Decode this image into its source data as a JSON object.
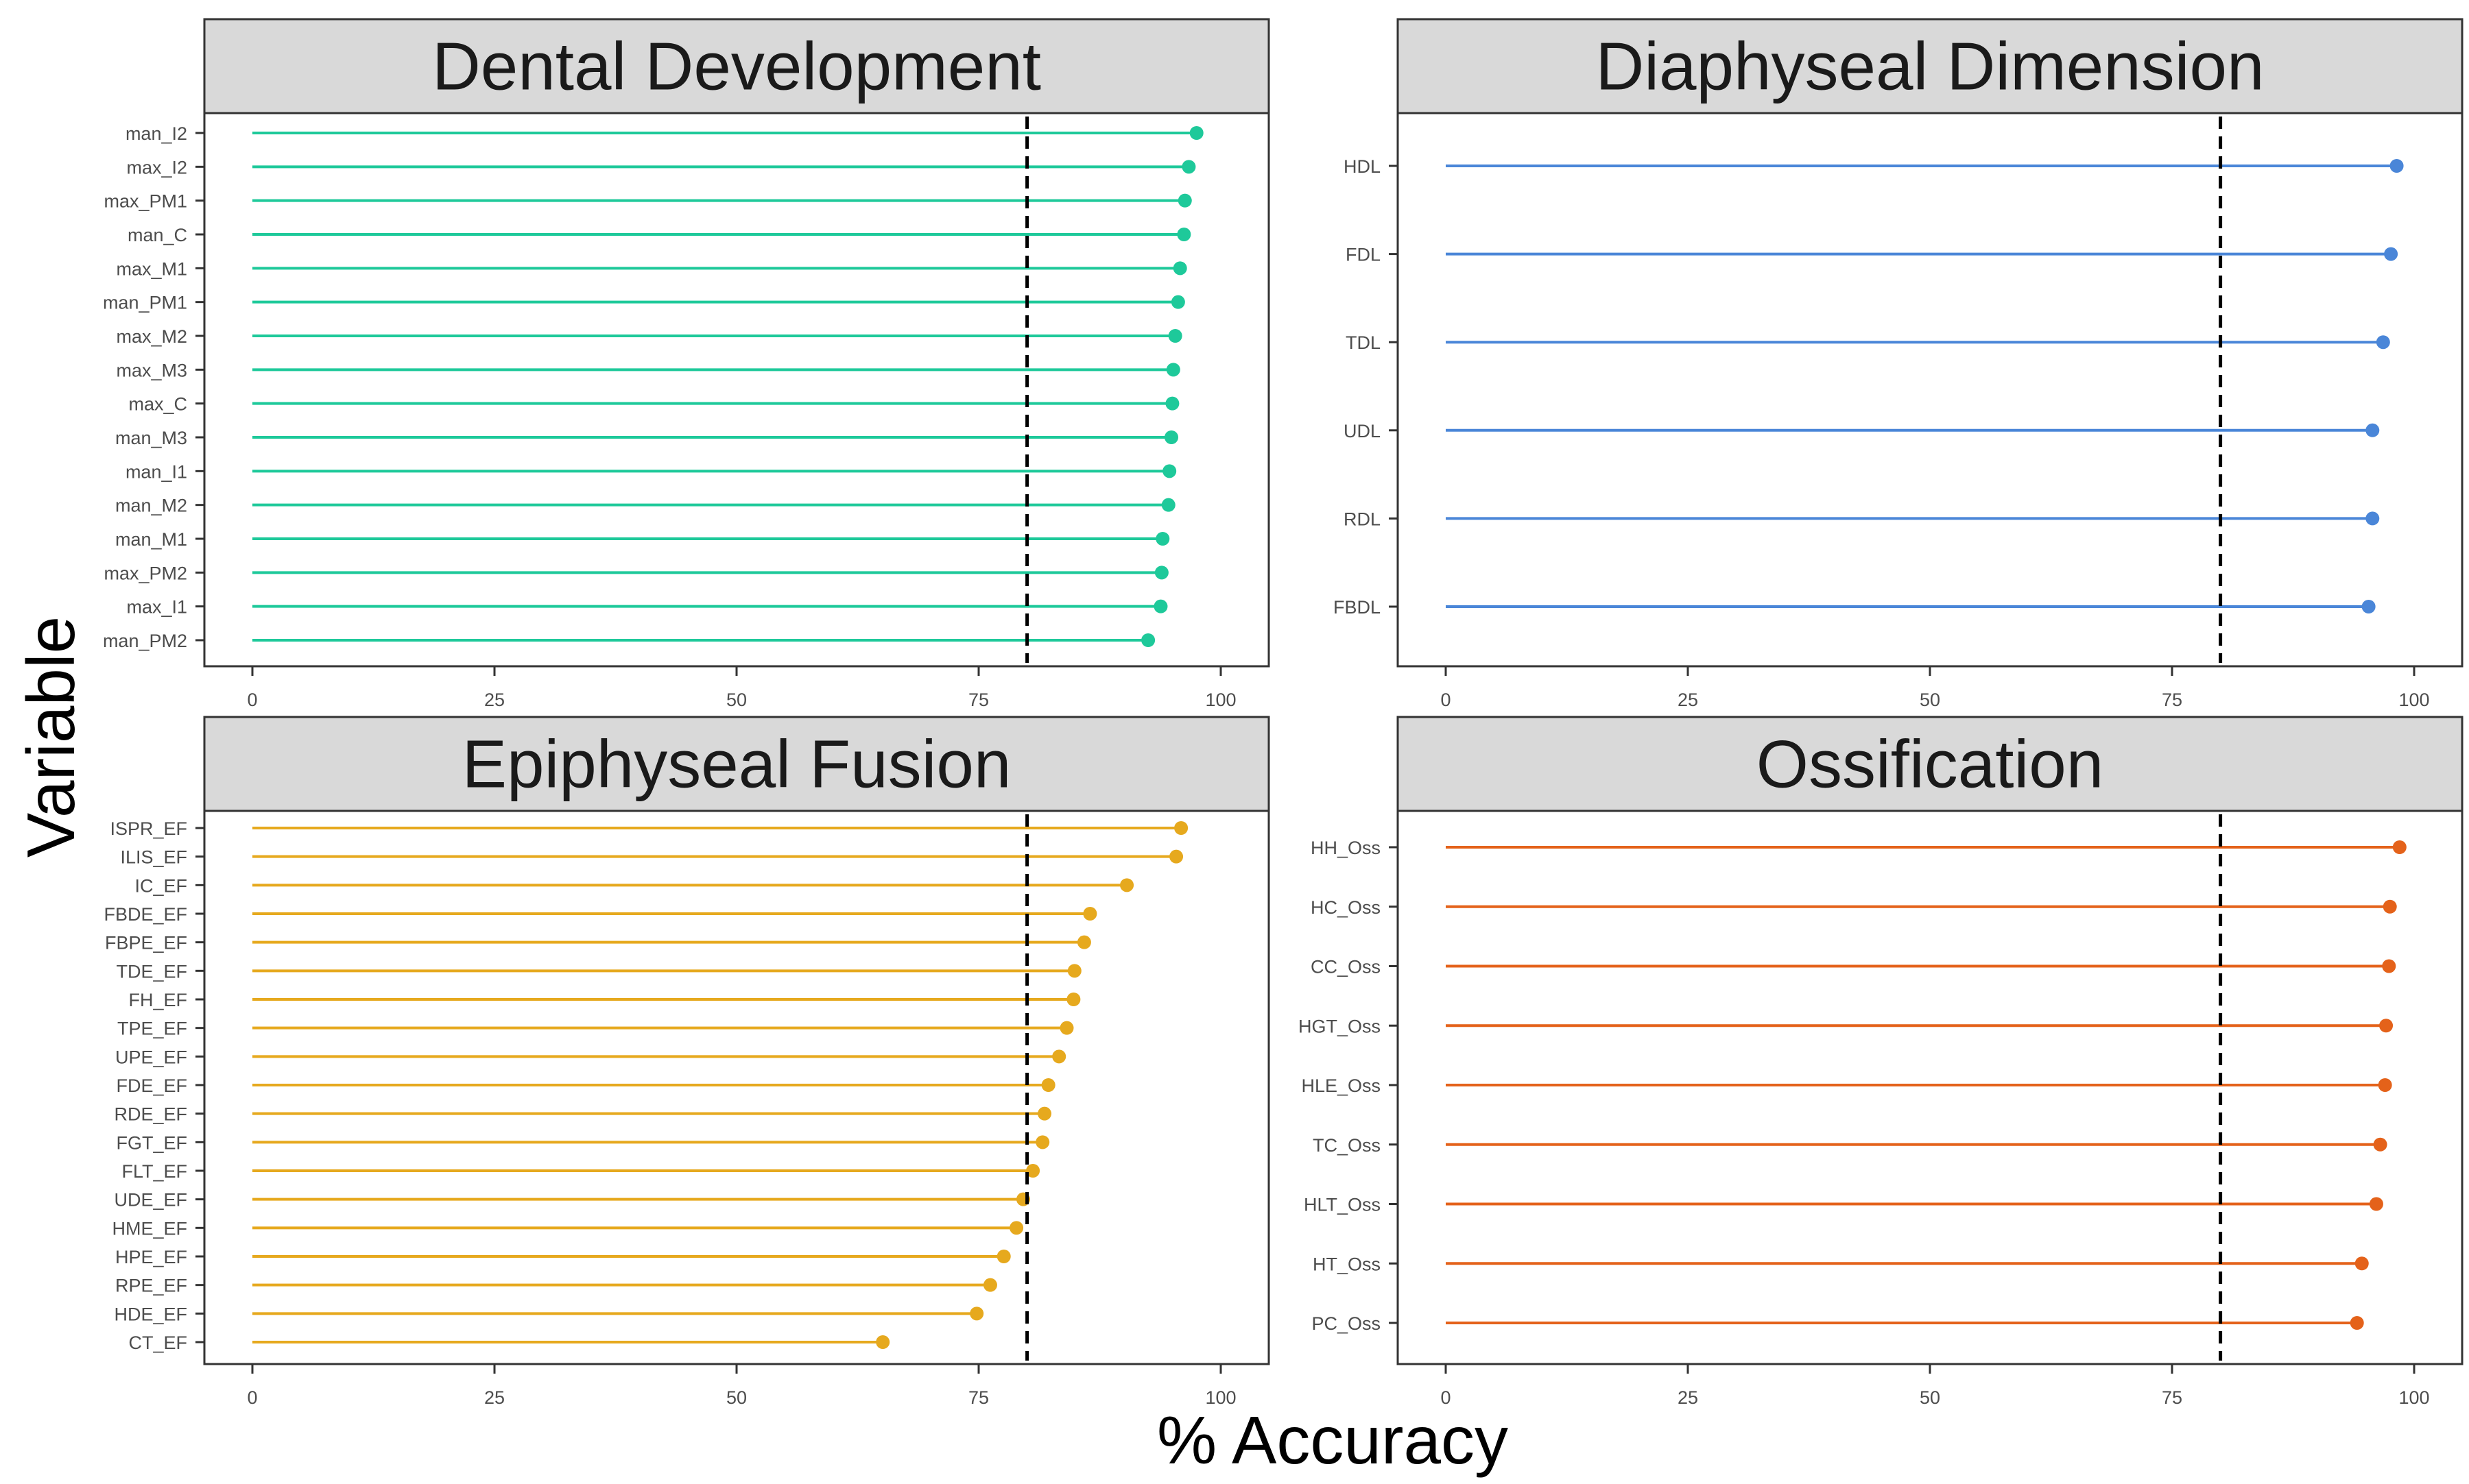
{
  "figure": {
    "ylabel": "Variable",
    "xlabel": "% Accuracy"
  },
  "chart_data": [
    {
      "type": "lollipop",
      "title": "Dental Development",
      "color": "#1ec99a",
      "xlim": [
        0,
        100
      ],
      "xticks": [
        0,
        25,
        50,
        75,
        100
      ],
      "threshold": 80,
      "categories": [
        "man_I2",
        "max_I2",
        "max_PM1",
        "man_C",
        "max_M1",
        "man_PM1",
        "max_M2",
        "max_M3",
        "max_C",
        "man_M3",
        "man_I1",
        "man_M2",
        "man_M1",
        "max_PM2",
        "max_I1",
        "man_PM2"
      ],
      "values": [
        97.5,
        96.7,
        96.3,
        96.2,
        95.8,
        95.6,
        95.3,
        95.1,
        95.0,
        94.9,
        94.7,
        94.6,
        94.0,
        93.9,
        93.8,
        92.5
      ]
    },
    {
      "type": "lollipop",
      "title": "Diaphyseal Dimension",
      "color": "#4a86d8",
      "xlim": [
        0,
        100
      ],
      "xticks": [
        0,
        25,
        50,
        75,
        100
      ],
      "threshold": 80,
      "categories": [
        "HDL",
        "FDL",
        "TDL",
        "UDL",
        "RDL",
        "FBDL"
      ],
      "values": [
        98.2,
        97.6,
        96.8,
        95.7,
        95.7,
        95.3
      ]
    },
    {
      "type": "lollipop",
      "title": "Epiphyseal Fusion",
      "color": "#e6a91e",
      "xlim": [
        0,
        100
      ],
      "xticks": [
        0,
        25,
        50,
        75,
        100
      ],
      "threshold": 80,
      "categories": [
        "ISPR_EF",
        "ILIS_EF",
        "IC_EF",
        "FBDE_EF",
        "FBPE_EF",
        "TDE_EF",
        "FH_EF",
        "TPE_EF",
        "UPE_EF",
        "FDE_EF",
        "RDE_EF",
        "FGT_EF",
        "FLT_EF",
        "UDE_EF",
        "HME_EF",
        "HPE_EF",
        "RPE_EF",
        "HDE_EF",
        "CT_EF"
      ],
      "values": [
        95.9,
        95.4,
        90.3,
        86.5,
        85.9,
        84.9,
        84.8,
        84.1,
        83.3,
        82.2,
        81.8,
        81.6,
        80.6,
        79.6,
        78.9,
        77.6,
        76.2,
        74.8,
        65.1
      ]
    },
    {
      "type": "lollipop",
      "title": "Ossification",
      "color": "#e4621a",
      "xlim": [
        0,
        100
      ],
      "xticks": [
        0,
        25,
        50,
        75,
        100
      ],
      "threshold": 80,
      "categories": [
        "HH_Oss",
        "HC_Oss",
        "CC_Oss",
        "HGT_Oss",
        "HLE_Oss",
        "TC_Oss",
        "HLT_Oss",
        "HT_Oss",
        "PC_Oss"
      ],
      "values": [
        98.5,
        97.5,
        97.4,
        97.1,
        97.0,
        96.5,
        96.1,
        94.6,
        94.1
      ]
    }
  ]
}
